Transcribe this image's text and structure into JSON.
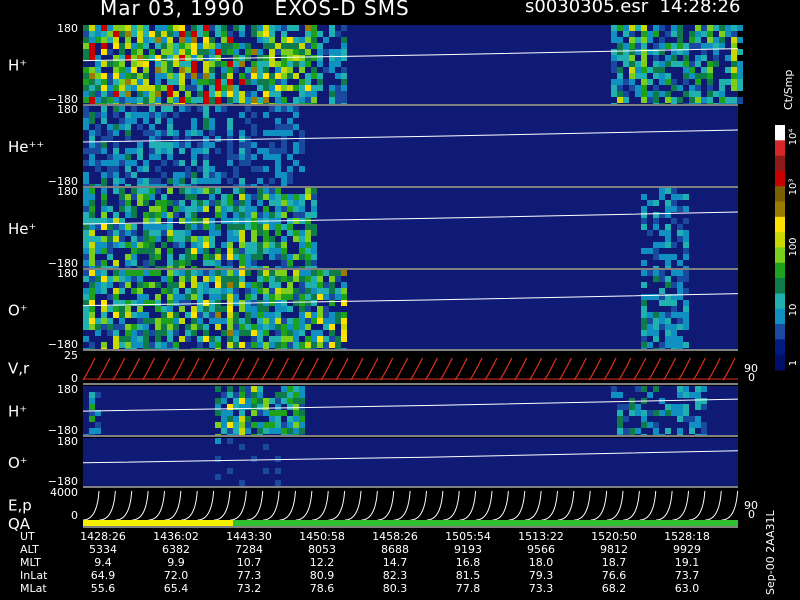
{
  "header": {
    "left": "Mar 03, 1990    EXOS-D SMS",
    "right": "s0030305.esr  14:28:26"
  },
  "colorbar": {
    "unit": "Ct/Smp",
    "ticks": [
      "10⁴",
      "10³",
      "100",
      "10",
      "1"
    ],
    "colors": [
      "#ffffff",
      "#d62728",
      "#8b1a1a",
      "#c70000",
      "#7a6000",
      "#9b7b00",
      "#ffe000",
      "#c8d800",
      "#7cce1c",
      "#1ea21e",
      "#0f7a4a",
      "#20b0b0",
      "#1090c0",
      "#1a4aa0",
      "#001a80",
      "#00106a"
    ]
  },
  "palette": {
    "background": "#000000",
    "spectrogram_bg": "#0f1a75",
    "trace": "#ffffff",
    "velocity_trace": "#e03020",
    "qa_bar_yellow": "#f4f000",
    "qa_bar_green": "#30c030"
  },
  "panels": [
    {
      "name": "H⁺",
      "top": "180",
      "bottom": "−180"
    },
    {
      "name": "He⁺⁺",
      "top": "180",
      "bottom": "−180"
    },
    {
      "name": "He⁺",
      "top": "180",
      "bottom": "−180"
    },
    {
      "name": "O⁺",
      "top": "180",
      "bottom": "−180"
    },
    {
      "name": "V,r",
      "top": "25",
      "bottom": "0",
      "right_top": "90",
      "right_bottom": "0"
    },
    {
      "name": "H⁺",
      "top": "180",
      "bottom": "−180"
    },
    {
      "name": "O⁺",
      "top": "180",
      "bottom": "−180"
    },
    {
      "name": "E,p",
      "top": "4000",
      "bottom": "0",
      "right_top": "90",
      "right_bottom": "0"
    },
    {
      "name": "QA",
      "top": "",
      "bottom": ""
    }
  ],
  "chart_data": {
    "type": "heatmap",
    "title": "Mar 03, 1990    EXOS-D SMS",
    "subtitle": "s0030305.esr  14:28:26",
    "xlabel": "UT",
    "rows": [
      "UT",
      "ALT",
      "MLT",
      "InLat",
      "MLat"
    ],
    "columns": [
      [
        "1428:26",
        "5334",
        "9.4",
        "64.9",
        "55.6"
      ],
      [
        "1436:02",
        "6382",
        "9.9",
        "72.0",
        "65.4"
      ],
      [
        "1443:30",
        "7284",
        "10.7",
        "77.3",
        "73.2"
      ],
      [
        "1450:58",
        "8053",
        "12.2",
        "80.9",
        "78.6"
      ],
      [
        "1458:26",
        "8688",
        "14.7",
        "82.3",
        "80.3"
      ],
      [
        "1505:54",
        "9193",
        "16.8",
        "81.5",
        "77.8"
      ],
      [
        "1513:22",
        "9566",
        "18.0",
        "79.3",
        "73.3"
      ],
      [
        "1520:50",
        "9812",
        "18.7",
        "76.6",
        "68.2"
      ],
      [
        "1528:18",
        "9929",
        "19.1",
        "73.7",
        "63.0"
      ]
    ],
    "colorbar_scale": "log",
    "colorbar_range": [
      1,
      10000
    ]
  },
  "footer_id": "Sep-00  2AA31L"
}
